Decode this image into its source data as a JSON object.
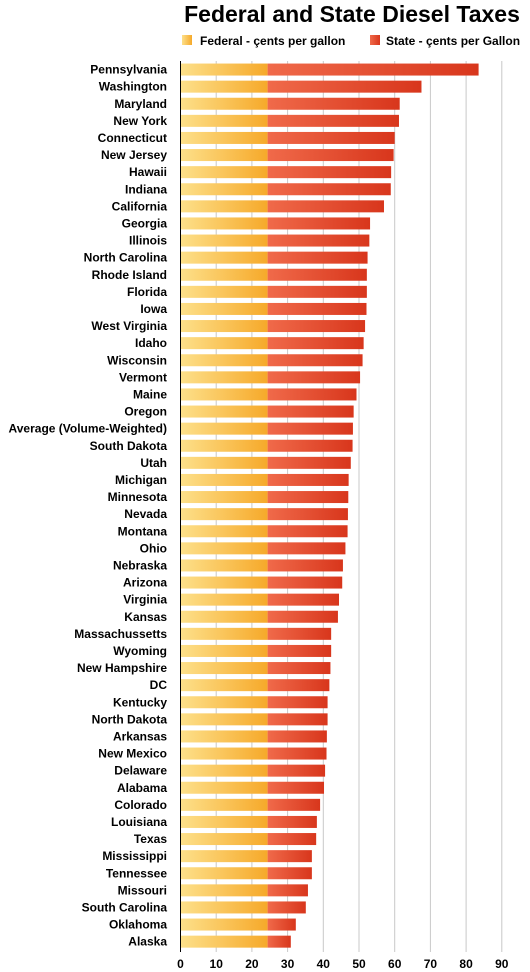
{
  "chart_data": {
    "type": "bar",
    "orientation": "horizontal",
    "stacked": true,
    "title": "Federal and State Diesel Taxes",
    "legend_position": "top",
    "xlim": [
      0,
      95
    ],
    "ticks": [
      0,
      10,
      20,
      30,
      40,
      50,
      60,
      70,
      80,
      90
    ],
    "grid": true,
    "colors": {
      "federal": "#f6a92a",
      "federal_light": "#fde08a",
      "state": "#d8361c",
      "state_light": "#f06a4a"
    },
    "categories": [
      "Pennsylvania",
      "Washington",
      "Maryland",
      "New York",
      "Connecticut",
      "New Jersey",
      "Hawaii",
      "Indiana",
      "California",
      "Georgia",
      "Illinois",
      "North Carolina",
      "Rhode Island",
      "Florida",
      "Iowa",
      "West Virginia",
      "Idaho",
      "Wisconsin",
      "Vermont",
      "Maine",
      "Oregon",
      "Average (Volume-Weighted)",
      "South Dakota",
      "Utah",
      "Michigan",
      "Minnesota",
      "Nevada",
      "Montana",
      "Ohio",
      "Nebraska",
      "Arizona",
      "Virginia",
      "Kansas",
      "Massachussetts",
      "Wyoming",
      "New Hampshire",
      "DC",
      "Kentucky",
      "North Dakota",
      "Arkansas",
      "New Mexico",
      "Delaware",
      "Alabama",
      "Colorado",
      "Louisiana",
      "Texas",
      "Mississippi",
      "Tennessee",
      "Missouri",
      "South Carolina",
      "Oklahoma",
      "Alaska"
    ],
    "series": [
      {
        "name": "Federal - çents per gallon",
        "values": [
          24.4,
          24.4,
          24.4,
          24.4,
          24.4,
          24.4,
          24.4,
          24.4,
          24.4,
          24.4,
          24.4,
          24.4,
          24.4,
          24.4,
          24.4,
          24.4,
          24.4,
          24.4,
          24.4,
          24.4,
          24.4,
          24.4,
          24.4,
          24.4,
          24.4,
          24.4,
          24.4,
          24.4,
          24.4,
          24.4,
          24.4,
          24.4,
          24.4,
          24.4,
          24.4,
          24.4,
          24.4,
          24.4,
          24.4,
          24.4,
          24.4,
          24.4,
          24.4,
          24.4,
          24.4,
          24.4,
          24.4,
          24.4,
          24.4,
          24.4,
          24.4,
          24.4
        ]
      },
      {
        "name": "State - çents per Gallon",
        "values": [
          59.1,
          43.1,
          37.0,
          36.8,
          35.6,
          35.3,
          34.6,
          34.5,
          32.6,
          28.7,
          28.5,
          28.0,
          27.8,
          27.8,
          27.7,
          27.3,
          26.9,
          26.6,
          25.9,
          24.9,
          24.1,
          23.9,
          23.8,
          23.3,
          22.7,
          22.6,
          22.5,
          22.4,
          21.8,
          21.1,
          20.9,
          20.0,
          19.7,
          17.8,
          17.8,
          17.6,
          17.3,
          16.8,
          16.8,
          16.6,
          16.5,
          16.1,
          15.8,
          14.7,
          13.8,
          13.6,
          12.4,
          12.4,
          11.3,
          10.7,
          7.9,
          6.5
        ]
      }
    ]
  }
}
